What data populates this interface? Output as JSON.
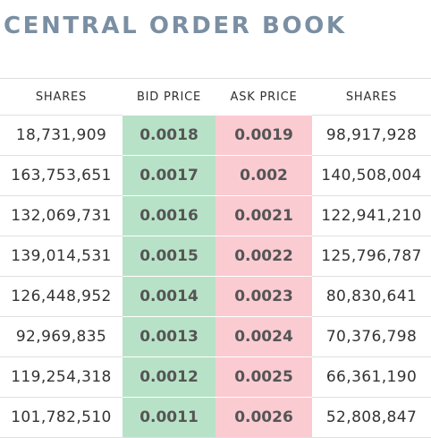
{
  "title": "CENTRAL ORDER BOOK",
  "headers": {
    "bid_shares": "SHARES",
    "bid_price": "BID PRICE",
    "ask_price": "ASK PRICE",
    "ask_shares": "SHARES"
  },
  "colors": {
    "bid_background": "#b8e2c7",
    "ask_background": "#fbcbd2",
    "title": "#7a8fa3"
  },
  "rows": [
    {
      "bid_shares": "18,731,909",
      "bid_price": "0.0018",
      "ask_price": "0.0019",
      "ask_shares": "98,917,928"
    },
    {
      "bid_shares": "163,753,651",
      "bid_price": "0.0017",
      "ask_price": "0.002",
      "ask_shares": "140,508,004"
    },
    {
      "bid_shares": "132,069,731",
      "bid_price": "0.0016",
      "ask_price": "0.0021",
      "ask_shares": "122,941,210"
    },
    {
      "bid_shares": "139,014,531",
      "bid_price": "0.0015",
      "ask_price": "0.0022",
      "ask_shares": "125,796,787"
    },
    {
      "bid_shares": "126,448,952",
      "bid_price": "0.0014",
      "ask_price": "0.0023",
      "ask_shares": "80,830,641"
    },
    {
      "bid_shares": "92,969,835",
      "bid_price": "0.0013",
      "ask_price": "0.0024",
      "ask_shares": "70,376,798"
    },
    {
      "bid_shares": "119,254,318",
      "bid_price": "0.0012",
      "ask_price": "0.0025",
      "ask_shares": "66,361,190"
    },
    {
      "bid_shares": "101,782,510",
      "bid_price": "0.0011",
      "ask_price": "0.0026",
      "ask_shares": "52,808,847"
    }
  ]
}
